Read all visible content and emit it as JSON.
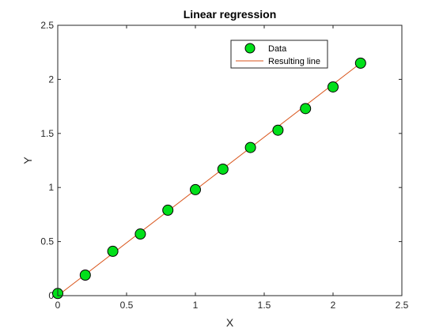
{
  "chart_data": {
    "type": "scatter",
    "title": "Linear regression",
    "xlabel": "X",
    "ylabel": "Y",
    "xlim": [
      0,
      2.5
    ],
    "ylim": [
      0,
      2.5
    ],
    "xticks": [
      0,
      0.5,
      1,
      1.5,
      2,
      2.5
    ],
    "yticks": [
      0,
      0.5,
      1,
      1.5,
      2,
      2.5
    ],
    "xtick_labels": [
      "0",
      "0.5",
      "1",
      "1.5",
      "2",
      "2.5"
    ],
    "ytick_labels": [
      "0",
      "0.5",
      "1",
      "1.5",
      "2",
      "2.5"
    ],
    "grid": false,
    "legend_position": "top-right",
    "series": [
      {
        "name": "Data",
        "kind": "markers",
        "color": "#00e01a",
        "edge_color": "#000000",
        "x": [
          0,
          0.2,
          0.4,
          0.6,
          0.8,
          1.0,
          1.2,
          1.4,
          1.6,
          1.8,
          2.0,
          2.2
        ],
        "y": [
          0.02,
          0.19,
          0.41,
          0.57,
          0.79,
          0.98,
          1.17,
          1.37,
          1.53,
          1.73,
          1.93,
          2.15
        ]
      },
      {
        "name": "Resulting line",
        "kind": "line",
        "color": "#d95319",
        "x": [
          0,
          2.2
        ],
        "y": [
          0.0,
          2.15
        ]
      }
    ]
  }
}
